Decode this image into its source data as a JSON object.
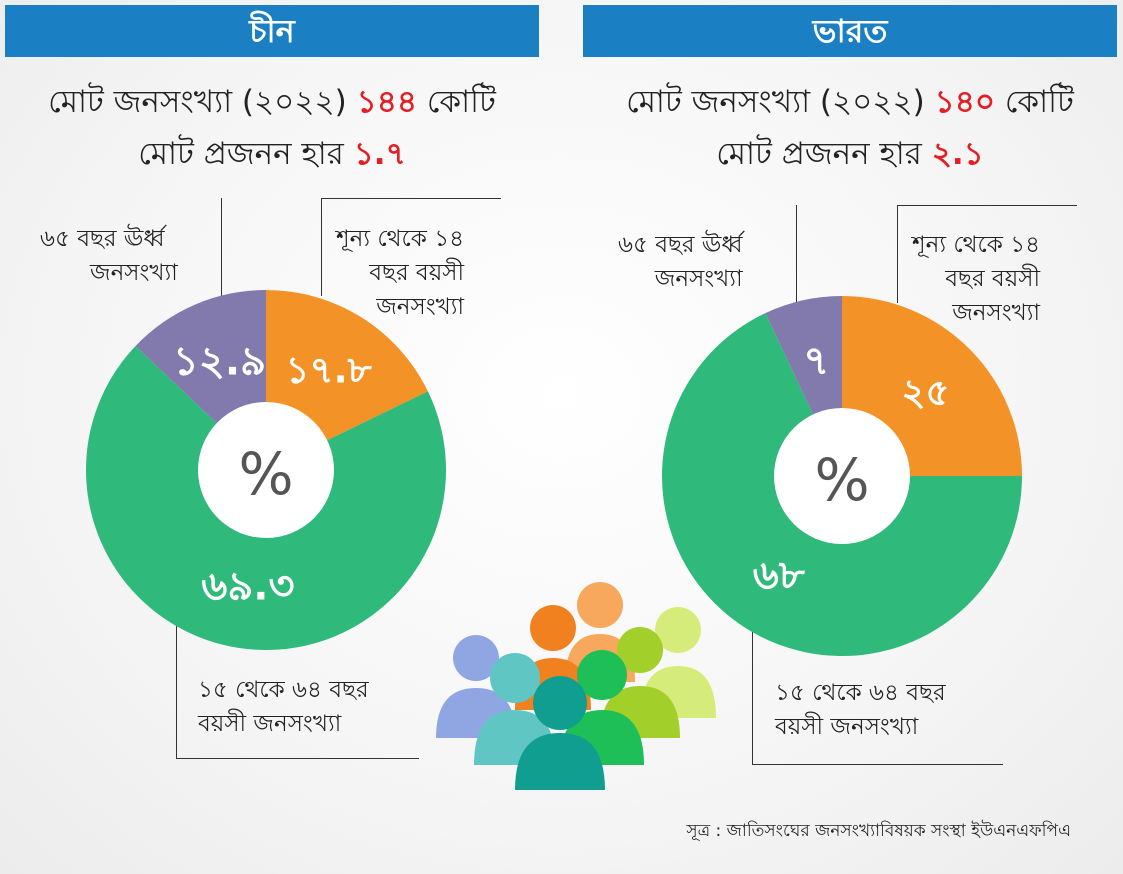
{
  "colors": {
    "header_blue": "#1b7fc4",
    "highlight_red": "#e31e24",
    "orange": "#f39226",
    "green": "#2fb97b",
    "purple": "#8279ad"
  },
  "left": {
    "title": "চীন",
    "line1_prefix": "মোট জনসংখ্যা (২০২২) ",
    "line1_value": "১৪৪",
    "line1_suffix": " কোটি",
    "line2_prefix": "মোট প্রজনন হার ",
    "line2_value": "১.৭",
    "label_old": [
      "৬৫ বছর ঊর্ধ্ব",
      "জনসংখ্যা"
    ],
    "label_young": [
      "শূন্য থেকে ১৪",
      "বছর বয়সী",
      "জনসংখ্যা"
    ],
    "label_working": [
      "১৫ থেকে ৬৪ বছর",
      "বয়সী জনসংখ্যা"
    ]
  },
  "right": {
    "title": "ভারত",
    "line1_prefix": "মোট জনসংখ্যা (২০২২) ",
    "line1_value": "১৪০",
    "line1_suffix": " কোটি",
    "line2_prefix": "মোট প্রজনন হার ",
    "line2_value": "২.১",
    "label_old": [
      "৬৫ বছর ঊর্ধ্ব",
      "জনসংখ্যা"
    ],
    "label_young": [
      "শূন্য থেকে ১৪",
      "বছর বয়সী",
      "জনসংখ্যা"
    ],
    "label_working": [
      "১৫ থেকে ৬৪ বছর",
      "বয়সী জনসংখ্যা"
    ]
  },
  "chart_data": [
    {
      "type": "pie",
      "title": "চীন",
      "center_label": "%",
      "slices": [
        {
          "name": "শূন্য থেকে ১৪ বছর বয়সী জনসংখ্যা",
          "value": 17.8,
          "label": "১৭.৮",
          "color": "#f39226"
        },
        {
          "name": "১৫ থেকে ৬৪ বছর বয়সী জনসংখ্যা",
          "value": 69.3,
          "label": "৬৯.৩",
          "color": "#2fb97b"
        },
        {
          "name": "৬৫ বছর ঊর্ধ্ব জনসংখ্যা",
          "value": 12.9,
          "label": "১২.৯",
          "color": "#8279ad"
        }
      ]
    },
    {
      "type": "pie",
      "title": "ভারত",
      "center_label": "%",
      "slices": [
        {
          "name": "শূন্য থেকে ১৪ বছর বয়সী জনসংখ্যা",
          "value": 25,
          "label": "২৫",
          "color": "#f39226"
        },
        {
          "name": "১৫ থেকে ৬৪ বছর বয়সী জনসংখ্যা",
          "value": 68,
          "label": "৬৮",
          "color": "#2fb97b"
        },
        {
          "name": "৬৫ বছর ঊর্ধ্ব জনসংখ্যা",
          "value": 7,
          "label": "৭",
          "color": "#8279ad"
        }
      ]
    }
  ],
  "people_icon": "people-group-icon",
  "source": "সূত্র : জাতিসংঘের জনসংখ্যাবিষয়ক সংস্থা ইউএনএফপিএ"
}
